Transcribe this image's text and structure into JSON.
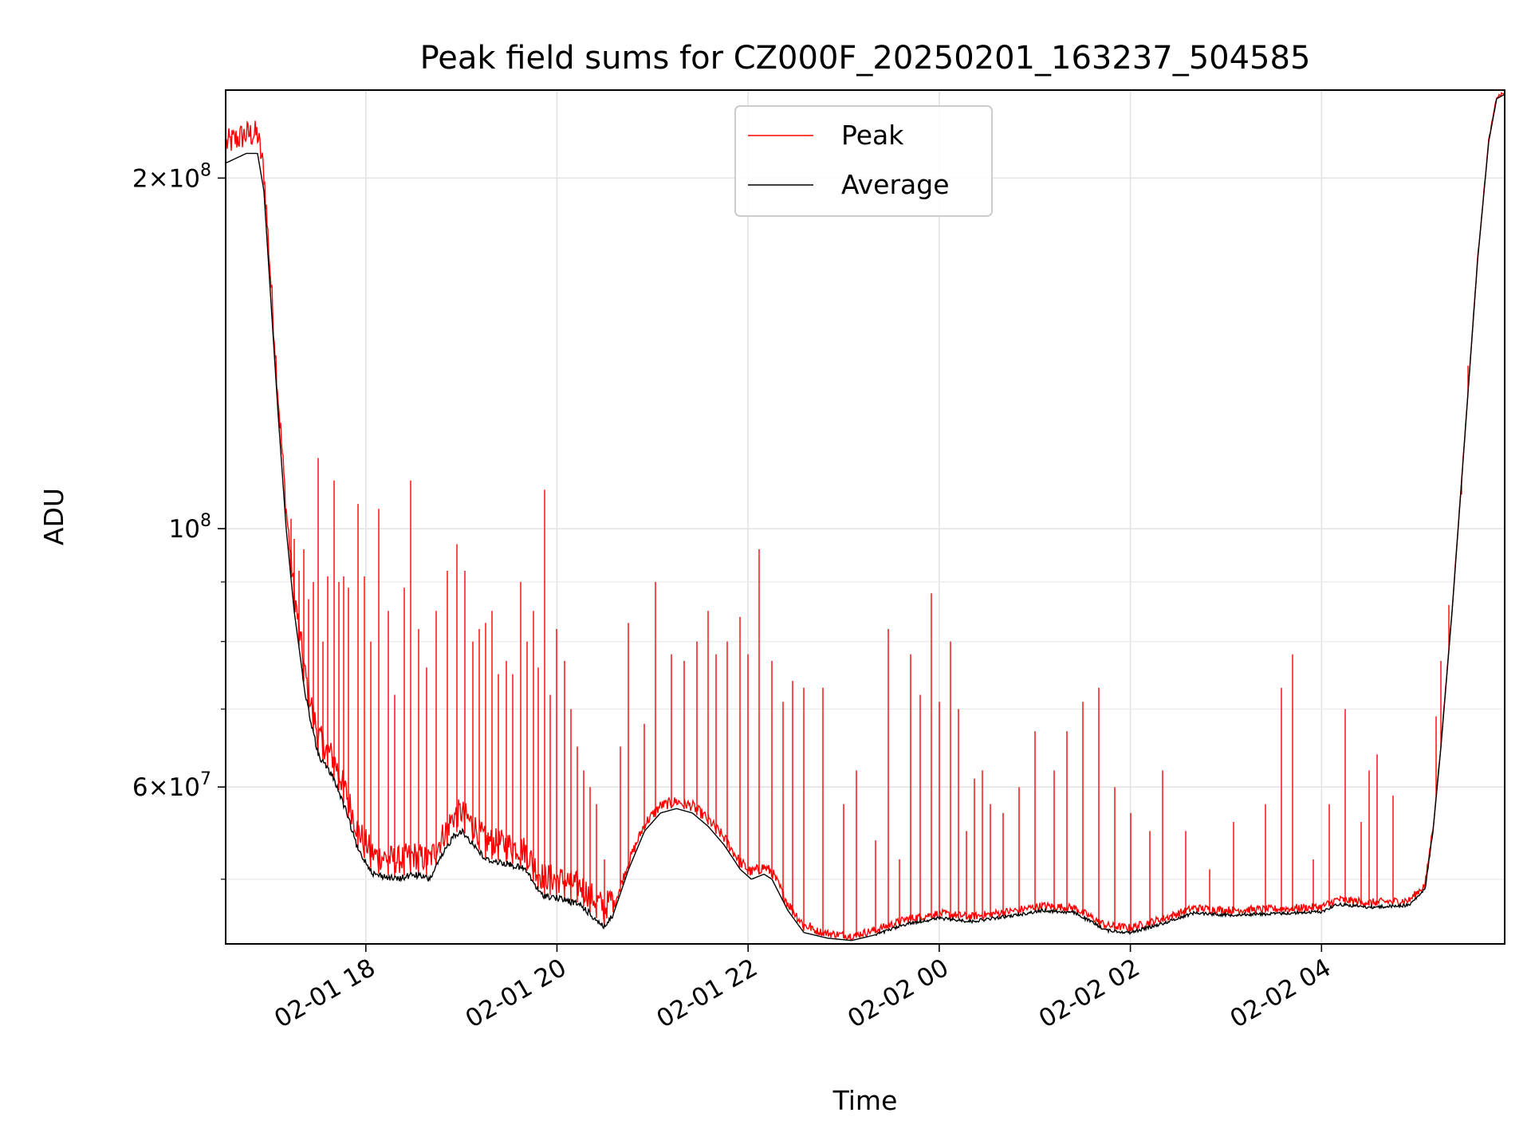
{
  "chart_data": {
    "type": "line",
    "title": "Peak field sums for CZ000F_20250201_163237_504585",
    "xlabel": "Time",
    "ylabel": "ADU",
    "yscale": "log",
    "grid": true,
    "legend_placement": "upper-center",
    "xlim": [
      "2025-02-01 16:32",
      "2025-02-02 05:55"
    ],
    "ylim": [
      44000000,
      238000000
    ],
    "x_ticks": [
      {
        "value": "2025-02-01 18:00",
        "label": "02-01 18"
      },
      {
        "value": "2025-02-01 20:00",
        "label": "02-01 20"
      },
      {
        "value": "2025-02-01 22:00",
        "label": "02-01 22"
      },
      {
        "value": "2025-02-02 00:00",
        "label": "02-02 00"
      },
      {
        "value": "2025-02-02 02:00",
        "label": "02-02 02"
      },
      {
        "value": "2025-02-02 04:00",
        "label": "02-02 04"
      }
    ],
    "y_ticks": [
      {
        "value": 200000000,
        "mant": "2",
        "exp": "8"
      },
      {
        "value": 100000000,
        "mant": "",
        "exp": "8"
      },
      {
        "value": 60000000,
        "mant": "6",
        "exp": "7"
      }
    ],
    "y_minor_ticks": [
      50000000,
      70000000,
      80000000,
      90000000
    ],
    "series": [
      {
        "name": "Peak",
        "color": "#ff0000",
        "spikes": [
          [
            "2025-02-01 17:13",
            102000000
          ],
          [
            "2025-02-01 17:15",
            98000000
          ],
          [
            "2025-02-01 17:18",
            92000000
          ],
          [
            "2025-02-01 17:21",
            96000000
          ],
          [
            "2025-02-01 17:24",
            87000000
          ],
          [
            "2025-02-01 17:27",
            90000000
          ],
          [
            "2025-02-01 17:30",
            115000000
          ],
          [
            "2025-02-01 17:33",
            80000000
          ],
          [
            "2025-02-01 17:36",
            91000000
          ],
          [
            "2025-02-01 17:40",
            110000000
          ],
          [
            "2025-02-01 17:43",
            90000000
          ],
          [
            "2025-02-01 17:46",
            91000000
          ],
          [
            "2025-02-01 17:49",
            89000000
          ],
          [
            "2025-02-01 17:55",
            105000000
          ],
          [
            "2025-02-01 17:59",
            91000000
          ],
          [
            "2025-02-01 18:03",
            80000000
          ],
          [
            "2025-02-01 18:08",
            104000000
          ],
          [
            "2025-02-01 18:14",
            85000000
          ],
          [
            "2025-02-01 18:18",
            72000000
          ],
          [
            "2025-02-01 18:24",
            89000000
          ],
          [
            "2025-02-01 18:28",
            110000000
          ],
          [
            "2025-02-01 18:33",
            82000000
          ],
          [
            "2025-02-01 18:38",
            76000000
          ],
          [
            "2025-02-01 18:44",
            85000000
          ],
          [
            "2025-02-01 18:51",
            92000000
          ],
          [
            "2025-02-01 18:57",
            97000000
          ],
          [
            "2025-02-01 19:02",
            92000000
          ],
          [
            "2025-02-01 19:07",
            80000000
          ],
          [
            "2025-02-01 19:11",
            82000000
          ],
          [
            "2025-02-01 19:15",
            83000000
          ],
          [
            "2025-02-01 19:19",
            85000000
          ],
          [
            "2025-02-01 19:23",
            75000000
          ],
          [
            "2025-02-01 19:28",
            77000000
          ],
          [
            "2025-02-01 19:32",
            75000000
          ],
          [
            "2025-02-01 19:37",
            90000000
          ],
          [
            "2025-02-01 19:41",
            80000000
          ],
          [
            "2025-02-01 19:45",
            85000000
          ],
          [
            "2025-02-01 19:48",
            76000000
          ],
          [
            "2025-02-01 19:52",
            108000000
          ],
          [
            "2025-02-01 19:56",
            72000000
          ],
          [
            "2025-02-01 20:00",
            82000000
          ],
          [
            "2025-02-01 20:05",
            77000000
          ],
          [
            "2025-02-01 20:09",
            70000000
          ],
          [
            "2025-02-01 20:13",
            65000000
          ],
          [
            "2025-02-01 20:17",
            62000000
          ],
          [
            "2025-02-01 20:21",
            60000000
          ],
          [
            "2025-02-01 20:25",
            58000000
          ],
          [
            "2025-02-01 20:30",
            52000000
          ],
          [
            "2025-02-01 20:40",
            65000000
          ],
          [
            "2025-02-01 20:45",
            83000000
          ],
          [
            "2025-02-01 20:55",
            68000000
          ],
          [
            "2025-02-01 21:02",
            90000000
          ],
          [
            "2025-02-01 21:12",
            78000000
          ],
          [
            "2025-02-01 21:20",
            77000000
          ],
          [
            "2025-02-01 21:28",
            80000000
          ],
          [
            "2025-02-01 21:35",
            85000000
          ],
          [
            "2025-02-01 21:40",
            78000000
          ],
          [
            "2025-02-01 21:47",
            80000000
          ],
          [
            "2025-02-01 21:55",
            84000000
          ],
          [
            "2025-02-01 22:00",
            78000000
          ],
          [
            "2025-02-01 22:07",
            96000000
          ],
          [
            "2025-02-01 22:15",
            77000000
          ],
          [
            "2025-02-01 22:22",
            71000000
          ],
          [
            "2025-02-01 22:28",
            74000000
          ],
          [
            "2025-02-01 22:35",
            73000000
          ],
          [
            "2025-02-01 22:47",
            73000000
          ],
          [
            "2025-02-01 23:00",
            58000000
          ],
          [
            "2025-02-01 23:08",
            62000000
          ],
          [
            "2025-02-01 23:20",
            54000000
          ],
          [
            "2025-02-01 23:28",
            82000000
          ],
          [
            "2025-02-01 23:35",
            52000000
          ],
          [
            "2025-02-01 23:42",
            78000000
          ],
          [
            "2025-02-01 23:48",
            72000000
          ],
          [
            "2025-02-01 23:55",
            88000000
          ],
          [
            "2025-02-02 00:00",
            71000000
          ],
          [
            "2025-02-02 00:07",
            80000000
          ],
          [
            "2025-02-02 00:12",
            70000000
          ],
          [
            "2025-02-02 00:17",
            55000000
          ],
          [
            "2025-02-02 00:22",
            61000000
          ],
          [
            "2025-02-02 00:27",
            62000000
          ],
          [
            "2025-02-02 00:32",
            58000000
          ],
          [
            "2025-02-02 00:40",
            57000000
          ],
          [
            "2025-02-02 00:50",
            60000000
          ],
          [
            "2025-02-02 01:00",
            67000000
          ],
          [
            "2025-02-02 01:12",
            62000000
          ],
          [
            "2025-02-02 01:20",
            67000000
          ],
          [
            "2025-02-02 01:30",
            71000000
          ],
          [
            "2025-02-02 01:40",
            73000000
          ],
          [
            "2025-02-02 01:50",
            60000000
          ],
          [
            "2025-02-02 02:00",
            57000000
          ],
          [
            "2025-02-02 02:12",
            55000000
          ],
          [
            "2025-02-02 02:20",
            62000000
          ],
          [
            "2025-02-02 02:35",
            55000000
          ],
          [
            "2025-02-02 02:50",
            51000000
          ],
          [
            "2025-02-02 03:05",
            56000000
          ],
          [
            "2025-02-02 03:25",
            58000000
          ],
          [
            "2025-02-02 03:35",
            73000000
          ],
          [
            "2025-02-02 03:42",
            78000000
          ],
          [
            "2025-02-02 03:55",
            52000000
          ],
          [
            "2025-02-02 04:05",
            58000000
          ],
          [
            "2025-02-02 04:15",
            70000000
          ],
          [
            "2025-02-02 04:25",
            56000000
          ],
          [
            "2025-02-02 04:30",
            62000000
          ],
          [
            "2025-02-02 04:35",
            64000000
          ],
          [
            "2025-02-02 04:45",
            59000000
          ],
          [
            "2025-02-02 05:12",
            69000000
          ],
          [
            "2025-02-02 05:15",
            77000000
          ],
          [
            "2025-02-02 05:20",
            86000000
          ],
          [
            "2025-02-02 05:28",
            107000000
          ],
          [
            "2025-02-02 05:32",
            138000000
          ]
        ]
      },
      {
        "name": "Average",
        "color": "#000000",
        "points": [
          [
            "2025-02-01 16:32",
            206000000
          ],
          [
            "2025-02-01 16:45",
            210000000
          ],
          [
            "2025-02-01 16:52",
            210000000
          ],
          [
            "2025-02-01 16:56",
            195000000
          ],
          [
            "2025-02-01 17:00",
            160000000
          ],
          [
            "2025-02-01 17:05",
            125000000
          ],
          [
            "2025-02-01 17:10",
            100000000
          ],
          [
            "2025-02-01 17:15",
            85000000
          ],
          [
            "2025-02-01 17:22",
            72000000
          ],
          [
            "2025-02-01 17:30",
            64000000
          ],
          [
            "2025-02-01 17:40",
            61000000
          ],
          [
            "2025-02-01 17:48",
            57000000
          ],
          [
            "2025-02-01 17:55",
            53000000
          ],
          [
            "2025-02-01 18:05",
            50500000
          ],
          [
            "2025-02-01 18:20",
            50000000
          ],
          [
            "2025-02-01 18:30",
            50500000
          ],
          [
            "2025-02-01 18:40",
            50000000
          ],
          [
            "2025-02-01 18:45",
            51500000
          ],
          [
            "2025-02-01 18:55",
            54500000
          ],
          [
            "2025-02-01 19:00",
            55000000
          ],
          [
            "2025-02-01 19:08",
            53500000
          ],
          [
            "2025-02-01 19:15",
            52000000
          ],
          [
            "2025-02-01 19:30",
            51500000
          ],
          [
            "2025-02-01 19:40",
            51000000
          ],
          [
            "2025-02-01 19:50",
            48500000
          ],
          [
            "2025-02-01 20:05",
            48000000
          ],
          [
            "2025-02-01 20:15",
            47500000
          ],
          [
            "2025-02-01 20:22",
            46500000
          ],
          [
            "2025-02-01 20:30",
            45500000
          ],
          [
            "2025-02-01 20:35",
            46500000
          ],
          [
            "2025-02-01 20:45",
            51000000
          ],
          [
            "2025-02-01 20:55",
            55000000
          ],
          [
            "2025-02-01 21:05",
            57000000
          ],
          [
            "2025-02-01 21:15",
            57500000
          ],
          [
            "2025-02-01 21:25",
            57000000
          ],
          [
            "2025-02-01 21:35",
            55500000
          ],
          [
            "2025-02-01 21:45",
            53500000
          ],
          [
            "2025-02-01 21:55",
            51000000
          ],
          [
            "2025-02-01 22:02",
            50000000
          ],
          [
            "2025-02-01 22:10",
            50500000
          ],
          [
            "2025-02-01 22:15",
            50000000
          ],
          [
            "2025-02-01 22:25",
            47000000
          ],
          [
            "2025-02-01 22:35",
            45000000
          ],
          [
            "2025-02-01 22:50",
            44500000
          ],
          [
            "2025-02-01 23:05",
            44300000
          ],
          [
            "2025-02-01 23:20",
            44800000
          ],
          [
            "2025-02-01 23:40",
            45800000
          ],
          [
            "2025-02-02 00:00",
            46300000
          ],
          [
            "2025-02-02 00:20",
            46000000
          ],
          [
            "2025-02-02 00:45",
            46500000
          ],
          [
            "2025-02-02 01:05",
            47000000
          ],
          [
            "2025-02-02 01:25",
            46800000
          ],
          [
            "2025-02-02 01:45",
            45200000
          ],
          [
            "2025-02-02 02:00",
            45000000
          ],
          [
            "2025-02-02 02:20",
            45800000
          ],
          [
            "2025-02-02 02:40",
            46800000
          ],
          [
            "2025-02-02 03:00",
            46600000
          ],
          [
            "2025-02-02 03:30",
            46700000
          ],
          [
            "2025-02-02 04:00",
            46900000
          ],
          [
            "2025-02-02 04:10",
            47600000
          ],
          [
            "2025-02-02 04:30",
            47300000
          ],
          [
            "2025-02-02 04:55",
            47500000
          ],
          [
            "2025-02-02 05:05",
            49000000
          ],
          [
            "2025-02-02 05:10",
            55000000
          ],
          [
            "2025-02-02 05:15",
            65000000
          ],
          [
            "2025-02-02 05:22",
            85000000
          ],
          [
            "2025-02-02 05:30",
            120000000
          ],
          [
            "2025-02-02 05:38",
            170000000
          ],
          [
            "2025-02-02 05:45",
            215000000
          ],
          [
            "2025-02-02 05:50",
            234000000
          ],
          [
            "2025-02-02 05:55",
            236000000
          ]
        ]
      }
    ]
  }
}
